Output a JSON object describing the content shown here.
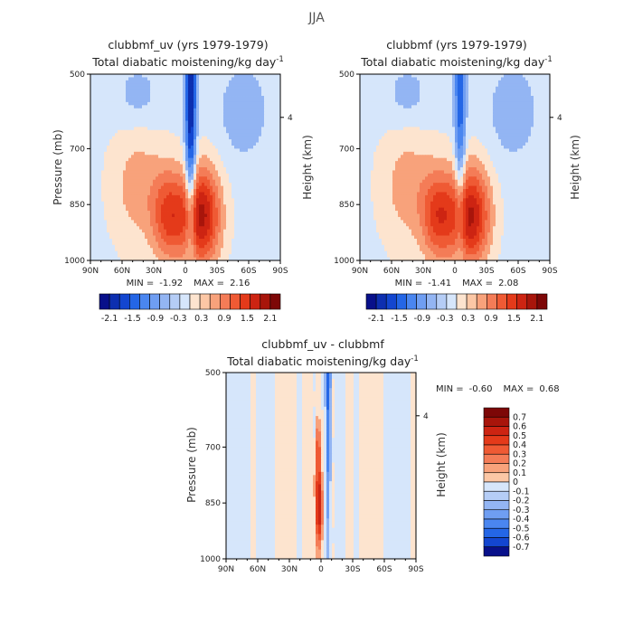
{
  "figure_title": "JJA",
  "colors": {
    "neg": [
      "#08108a",
      "#0d2fb0",
      "#1346d0",
      "#2466e6",
      "#4a86f0",
      "#6f9ef2",
      "#93b5f3",
      "#b5cdf6",
      "#d6e6fb"
    ],
    "pos": [
      "#fde4cf",
      "#fcc7a5",
      "#f8a27b",
      "#f47c57",
      "#ef5a34",
      "#e43a1a",
      "#cd2412",
      "#a8150b",
      "#7d0707"
    ]
  },
  "chart_data": [
    {
      "type": "heatmap",
      "title": "clubbmf_uv (yrs 1979-1979)",
      "subtitle": "Total diabatic moistening/kg day",
      "subtitle_exp": "-1",
      "xlabel": "",
      "ylabel": "Pressure (mb)",
      "y2label": "Height (km)",
      "x_tick_labels": [
        "90N",
        "60N",
        "30N",
        "0",
        "30S",
        "60S",
        "90S"
      ],
      "x_ticks": [
        90,
        60,
        30,
        0,
        -30,
        -60,
        -90
      ],
      "xlim": [
        90,
        -90
      ],
      "y_tick_labels": [
        "500",
        "700",
        "850",
        "1000"
      ],
      "y_ticks": [
        500,
        700,
        850,
        1000
      ],
      "ylim": [
        500,
        1000
      ],
      "y2_tick_labels": [
        "4"
      ],
      "stats": {
        "min_label": "MIN =",
        "min": "-1.92",
        "max_label": "MAX =",
        "max": "2.16"
      },
      "colorbar_labels": [
        "-2.1",
        "-1.5",
        "-0.9",
        "-0.3",
        "0.3",
        "0.9",
        "1.5",
        "2.1"
      ],
      "levels": [
        -2.1,
        -1.8,
        -1.5,
        -1.2,
        -0.9,
        -0.6,
        -0.3,
        0,
        0.3,
        0.6,
        0.9,
        1.2,
        1.5,
        1.8,
        2.1
      ],
      "field": {
        "jet": {
          "lat": -5,
          "amp": -2.1,
          "width": 5,
          "depth": 1.0
        },
        "blobs": [
          {
            "lat": -15,
            "p": 880,
            "amp": 2.0,
            "sx": 18,
            "sp": 130
          },
          {
            "lat": 15,
            "p": 880,
            "amp": 1.35,
            "sx": 16,
            "sp": 120
          },
          {
            "lat": 45,
            "p": 800,
            "amp": 0.55,
            "sx": 26,
            "sp": 170
          }
        ],
        "upper_neg": [
          {
            "lat": -55,
            "p": 600,
            "amp": -0.45,
            "sx": 22,
            "sp": 120
          },
          {
            "lat": 45,
            "p": 560,
            "amp": -0.35,
            "sx": 22,
            "sp": 90
          }
        ],
        "background": -0.1
      }
    },
    {
      "type": "heatmap",
      "title": "clubbmf (yrs 1979-1979)",
      "subtitle": "Total diabatic moistening/kg day",
      "subtitle_exp": "-1",
      "xlabel": "",
      "ylabel": "",
      "y2label": "Height (km)",
      "x_tick_labels": [
        "90N",
        "60N",
        "30N",
        "0",
        "30S",
        "60S",
        "90S"
      ],
      "x_ticks": [
        90,
        60,
        30,
        0,
        -30,
        -60,
        -90
      ],
      "xlim": [
        90,
        -90
      ],
      "y_tick_labels": [
        "500",
        "700",
        "850",
        "1000"
      ],
      "y_ticks": [
        500,
        700,
        850,
        1000
      ],
      "ylim": [
        500,
        1000
      ],
      "y2_tick_labels": [
        "4"
      ],
      "stats": {
        "min_label": "MIN =",
        "min": "-1.41",
        "max_label": "MAX =",
        "max": "2.08"
      },
      "colorbar_labels": [
        "-2.1",
        "-1.5",
        "-0.9",
        "-0.3",
        "0.3",
        "0.9",
        "1.5",
        "2.1"
      ],
      "levels": [
        -2.1,
        -1.8,
        -1.5,
        -1.2,
        -0.9,
        -0.6,
        -0.3,
        0,
        0.3,
        0.6,
        0.9,
        1.2,
        1.5,
        1.8,
        2.1
      ],
      "field": {
        "jet": {
          "lat": -5,
          "amp": -1.45,
          "width": 5,
          "depth": 0.9
        },
        "blobs": [
          {
            "lat": -15,
            "p": 880,
            "amp": 1.95,
            "sx": 18,
            "sp": 130
          },
          {
            "lat": 15,
            "p": 880,
            "amp": 1.4,
            "sx": 16,
            "sp": 120
          },
          {
            "lat": 45,
            "p": 800,
            "amp": 0.55,
            "sx": 26,
            "sp": 170
          }
        ],
        "upper_neg": [
          {
            "lat": -55,
            "p": 600,
            "amp": -0.45,
            "sx": 22,
            "sp": 120
          },
          {
            "lat": 45,
            "p": 560,
            "amp": -0.35,
            "sx": 22,
            "sp": 90
          }
        ],
        "background": -0.1
      }
    },
    {
      "type": "heatmap",
      "title": "clubbmf_uv - clubbmf",
      "subtitle": "Total diabatic moistening/kg day",
      "subtitle_exp": "-1",
      "xlabel": "",
      "ylabel": "Pressure (mb)",
      "y2label": "Height (km)",
      "x_tick_labels": [
        "90N",
        "60N",
        "30N",
        "0",
        "30S",
        "60S",
        "90S"
      ],
      "x_ticks": [
        90,
        60,
        30,
        0,
        -30,
        -60,
        -90
      ],
      "xlim": [
        90,
        -90
      ],
      "y_tick_labels": [
        "500",
        "700",
        "850",
        "1000"
      ],
      "y_ticks": [
        500,
        700,
        850,
        1000
      ],
      "ylim": [
        500,
        1000
      ],
      "y2_tick_labels": [
        "4"
      ],
      "stats": {
        "min_label": "MIN =",
        "min": "-0.60",
        "max_label": "MAX =",
        "max": "0.68"
      },
      "colorbar_labels": [
        "0.7",
        "0.6",
        "0.5",
        "0.4",
        "0.3",
        "0.2",
        "0.1",
        "0",
        "-0.1",
        "-0.2",
        "-0.3",
        "-0.4",
        "-0.5",
        "-0.6",
        "-0.7"
      ],
      "levels": [
        -0.7,
        -0.6,
        -0.5,
        -0.4,
        -0.3,
        -0.2,
        -0.1,
        0,
        0.1,
        0.2,
        0.3,
        0.4,
        0.5,
        0.6,
        0.7
      ],
      "field": {
        "jet": {
          "lat": -7,
          "amp": -0.68,
          "width": 2.5,
          "depth": 0.55
        },
        "blobs": [
          {
            "lat": 2,
            "p": 860,
            "amp": 0.62,
            "sx": 3.5,
            "sp": 110
          },
          {
            "lat": 3,
            "p": 700,
            "amp": 0.3,
            "sx": 3,
            "sp": 80
          }
        ],
        "upper_neg": [],
        "background": 0.0,
        "noise": 0.09
      }
    }
  ]
}
